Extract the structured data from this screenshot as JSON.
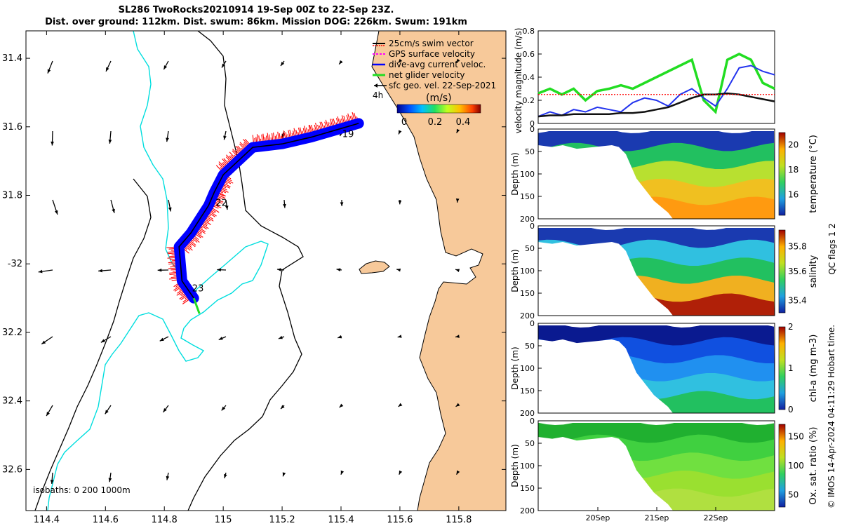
{
  "title": {
    "line1": "SL286 TwoRocks20210914 19-Sep 00Z to 22-Sep 23Z.",
    "line2": "Dist. over ground: 112km. Dist. swum: 86km. Mission DOG: 226km. Swum: 191km"
  },
  "colors": {
    "land": "#f7c99a",
    "coast_isobath": "#00e0e0",
    "swim_vector": "#ff0000",
    "current": "#0000ff",
    "net_velocity": "#22dd22",
    "geo_vector": "#000000"
  },
  "map": {
    "x_ticks": [
      114.4,
      114.6,
      114.8,
      115,
      115.2,
      115.4,
      115.6,
      115.8
    ],
    "y_ticks": [
      -31.4,
      -31.6,
      -31.8,
      -32,
      -32.2,
      -32.4,
      -32.6
    ],
    "x_tick_labels": [
      "114.4",
      "114.6",
      "114.8",
      "115",
      "115.2",
      "115.4",
      "115.6",
      "115.8"
    ],
    "y_tick_labels": [
      "31.4",
      "31.6",
      "31.8",
      "-32",
      "32.2",
      "32.4",
      "32.6"
    ],
    "xlim": [
      114.33,
      115.96
    ],
    "ylim": [
      -32.72,
      -31.32
    ],
    "isobath_label": "isobaths: 0   200  1000m",
    "day_labels": [
      {
        "label": "19",
        "lon": 115.39,
        "lat": -31.62
      },
      {
        "label": "22",
        "lon": 114.96,
        "lat": -31.82
      },
      {
        "label": "23",
        "lon": 114.88,
        "lat": -32.07
      }
    ],
    "track": {
      "lons": [
        115.46,
        115.38,
        115.3,
        115.2,
        115.1,
        115.05,
        115.0,
        114.97,
        114.95,
        114.92,
        114.89,
        114.85,
        114.86,
        114.9
      ],
      "lats": [
        -31.59,
        -31.61,
        -31.63,
        -31.65,
        -31.66,
        -31.7,
        -31.74,
        -31.79,
        -31.83,
        -31.87,
        -31.91,
        -31.95,
        -32.05,
        -32.1
      ]
    }
  },
  "legend": {
    "entries": [
      "25cm/s swim vector",
      "GPS surface velocity",
      "dive-avg current veloc.",
      "net glider velocity",
      "sfc geo. vel. 22-Sep-2021"
    ],
    "scale_label": "4h",
    "colorbar_title": "(m/s)",
    "colorbar_ticks": [
      "0",
      "0.2",
      "0.4"
    ]
  },
  "velocity_plot": {
    "ylabel": "velocity magnitude (m/s)",
    "ylim": [
      0,
      0.8
    ],
    "y_ticks": [
      "0",
      "0.2",
      "0.4",
      "0.6",
      "0.8"
    ],
    "x": [
      0,
      0.2,
      0.4,
      0.6,
      0.8,
      1,
      1.2,
      1.4,
      1.6,
      1.8,
      2,
      2.2,
      2.4,
      2.6,
      2.8,
      3,
      3.2,
      3.4,
      3.6,
      3.8,
      4
    ],
    "series": [
      {
        "name": "net glider velocity",
        "values": [
          0.26,
          0.3,
          0.25,
          0.3,
          0.2,
          0.28,
          0.3,
          0.33,
          0.3,
          0.35,
          0.4,
          0.45,
          0.5,
          0.55,
          0.2,
          0.1,
          0.55,
          0.6,
          0.55,
          0.35,
          0.3
        ]
      },
      {
        "name": "dive-avg current veloc.",
        "values": [
          0.06,
          0.1,
          0.07,
          0.12,
          0.1,
          0.14,
          0.12,
          0.1,
          0.18,
          0.22,
          0.2,
          0.15,
          0.25,
          0.3,
          0.22,
          0.15,
          0.3,
          0.48,
          0.5,
          0.45,
          0.42
        ]
      },
      {
        "name": "sfc geo. vel.",
        "values": [
          0.06,
          0.07,
          0.07,
          0.08,
          0.08,
          0.08,
          0.08,
          0.09,
          0.09,
          0.1,
          0.12,
          0.14,
          0.18,
          0.22,
          0.25,
          0.25,
          0.26,
          0.25,
          0.23,
          0.21,
          0.19
        ]
      },
      {
        "name": "swim speed",
        "values": [
          0.25,
          0.25,
          0.25,
          0.25,
          0.25,
          0.25,
          0.25,
          0.25,
          0.25,
          0.25,
          0.25,
          0.25,
          0.25,
          0.25,
          0.25,
          0.25,
          0.25,
          0.25,
          0.25,
          0.25,
          0.25
        ]
      }
    ]
  },
  "sections": [
    {
      "name": "temperature",
      "cbar_label": "temperature (°C)",
      "cbar_ticks": [
        "16",
        "18",
        "20"
      ],
      "ylabel": "Depth (m)",
      "y_ticks": [
        "0",
        "50",
        "100",
        "150",
        "200"
      ]
    },
    {
      "name": "salinity",
      "cbar_label": "salinity",
      "cbar_ticks": [
        "35.4",
        "35.6",
        "35.8"
      ],
      "ylabel": "Depth (m)",
      "y_ticks": [
        "0",
        "50",
        "100",
        "150",
        "200"
      ]
    },
    {
      "name": "chl-a",
      "cbar_label": "chl-a (mg m-3)",
      "cbar_ticks": [
        "0",
        "1",
        "2"
      ],
      "ylabel": "Depth (m)",
      "y_ticks": [
        "0",
        "50",
        "100",
        "150",
        "200"
      ]
    },
    {
      "name": "oxygen",
      "cbar_label": "Ox. sat. ratio (%)",
      "cbar_ticks": [
        "50",
        "100",
        "150"
      ],
      "ylabel": "Depth (m)",
      "y_ticks": [
        "0",
        "50",
        "100",
        "150",
        "200"
      ]
    }
  ],
  "time_axis": {
    "labels": [
      "20Sep",
      "21Sep",
      "22Sep"
    ]
  },
  "side_labels": {
    "qc_label": "QC flags 1  2"
  },
  "credit": "© IMOS 14-Apr-2024 04:11:29 Hobart time."
}
